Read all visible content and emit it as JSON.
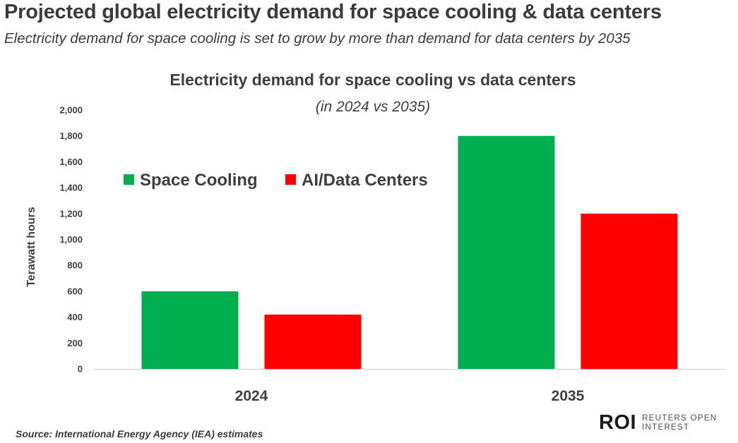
{
  "header": {
    "title": "Projected global electricity demand for space cooling & data centers",
    "subtitle": "Electricity demand for space cooling is set to grow by more than demand for data centers by 2035"
  },
  "chart_data": {
    "type": "bar",
    "title": "Electricity demand for space cooling vs data centers",
    "subtitle": "(in 2024 vs 2035)",
    "xlabel": "",
    "ylabel": "Terawatt hours",
    "categories": [
      "2024",
      "2035"
    ],
    "series": [
      {
        "name": "Space Cooling",
        "color": "#00b050",
        "values": [
          600,
          1800
        ]
      },
      {
        "name": "AI/Data Centers",
        "color": "#ff0000",
        "values": [
          420,
          1200
        ]
      }
    ],
    "ylim": [
      0,
      2000
    ],
    "yticks": [
      "0",
      "200",
      "400",
      "600",
      "800",
      "1,000",
      "1,200",
      "1,400",
      "1,600",
      "1,800",
      "2,000"
    ],
    "grid": false,
    "legend_position": "top-left"
  },
  "footer": {
    "source": "Source: International Energy Agency (IEA) estimates",
    "logo_mark": "ROI",
    "logo_line1": "REUTERS OPEN",
    "logo_line2": "INTEREST"
  }
}
